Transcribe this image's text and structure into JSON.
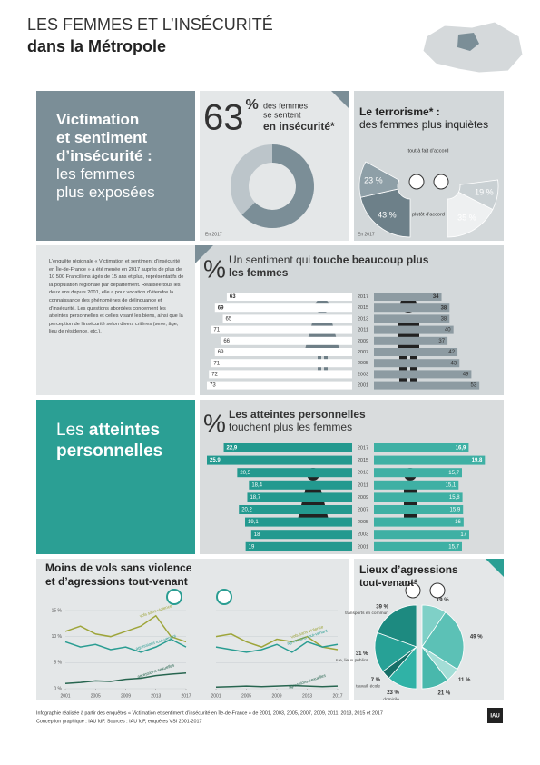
{
  "header": {
    "title": "LES FEMMES ET L’INSÉCURITÉ",
    "subtitle": "dans la Métropole"
  },
  "section1": {
    "title": [
      "Victimation",
      "et sentiment",
      "d’insécurité :"
    ],
    "subtitle": [
      "les femmes",
      "plus exposées"
    ]
  },
  "survey_text": "L’enquête régionale « Victimation et sentiment d’insécurité en Île-de-France » a été menée en 2017 auprès de plus de 10 500 Franciliens âgés de 15 ans et plus, représentatifs de la population régionale par département. Réalisée tous les deux ans depuis 2001, elle a pour vocation d’étendre la connaissance des phénomènes de délinquance et d’insécurité. Les questions abordées concernent les atteintes personnelles et celles visant les biens, ainsi que la perception de l’insécurité selon divers critères (sexe, âge, lieu de résidence, etc.).",
  "section2": {
    "prefix": "Les",
    "title": [
      "atteintes",
      "personnelles"
    ]
  },
  "chart_data": [
    {
      "type": "donut",
      "values": [
        63
      ],
      "unit": "%",
      "text": [
        "des femmes",
        "se sentent"
      ],
      "emphasis": "en insécurité*",
      "note": "En 2017",
      "colors": [
        "#7b8e97",
        "#bcc5ca"
      ]
    },
    {
      "type": "split-pie",
      "title": "Le terrorisme* :",
      "subtitle": "des femmes plus inquiètes",
      "start": "bottom",
      "categories": [
        "tout à fait d’accord",
        "plutôt d’accord"
      ],
      "series": [
        {
          "values": [
            23,
            43
          ],
          "value_labels": [
            "23 %",
            "43 %"
          ],
          "colors": [
            "#8e9fa7",
            "#6d8089"
          ]
        },
        {
          "values": [
            19,
            35
          ],
          "value_labels": [
            "19 %",
            "35 %"
          ],
          "colors": [
            "#c9d0d3",
            "#eef0f1"
          ]
        }
      ],
      "note": "En 2017"
    },
    {
      "type": "butterfly-bar",
      "symbol": "%",
      "title": "Un sentiment qui",
      "title_bold": [
        "touche beaucoup plus",
        "les femmes"
      ],
      "categories": [
        "2017",
        "2015",
        "2013",
        "2011",
        "2009",
        "2007",
        "2005",
        "2003",
        "2001"
      ],
      "series": [
        {
          "color": "#ffffff",
          "values": [
            63,
            69,
            65,
            71,
            66,
            69,
            71,
            72,
            73
          ]
        },
        {
          "color": "#8d9ba2",
          "values": [
            34,
            38,
            38,
            40,
            37,
            42,
            43,
            49,
            53
          ]
        }
      ]
    },
    {
      "type": "butterfly-bar",
      "symbol": "%",
      "title_bold": [
        "Les atteintes personnelles"
      ],
      "subtitle": "touchent plus les femmes",
      "categories": [
        "2017",
        "2015",
        "2013",
        "2011",
        "2009",
        "2007",
        "2005",
        "2003",
        "2001"
      ],
      "series": [
        {
          "color": "#23998f",
          "values": [
            22.9,
            25.9,
            20.5,
            18.4,
            18.7,
            20.2,
            19.1,
            18,
            19
          ],
          "value_labels": [
            "22,9",
            "25,9",
            "20,5",
            "18,4",
            "18,7",
            "20,2",
            "19,1",
            "18",
            "19"
          ]
        },
        {
          "color": "#3fb0a4",
          "values": [
            16.9,
            19.8,
            15.7,
            15.1,
            15.8,
            15.9,
            16,
            17,
            15.7
          ],
          "value_labels": [
            "16,9",
            "19,8",
            "15,7",
            "15,1",
            "15,8",
            "15,9",
            "16",
            "17",
            "15,7"
          ]
        }
      ]
    },
    {
      "type": "line",
      "title": [
        "Moins de vols sans violence",
        "et d’agressions tout-venant"
      ],
      "x": [
        2001,
        2003,
        2005,
        2007,
        2009,
        2011,
        2013,
        2015,
        2017
      ],
      "xlim": [
        2001,
        2017
      ],
      "xticks": [
        2001,
        2005,
        2009,
        2013,
        2017
      ],
      "ylim": [
        0,
        15
      ],
      "yticks": [
        {
          "value": 0,
          "label": "0 %"
        },
        {
          "value": 5,
          "label": "5 %"
        },
        {
          "value": 10,
          "label": "10 %"
        },
        {
          "value": 15,
          "label": "15 %"
        }
      ],
      "grid": true,
      "panels": [
        {
          "series": [
            {
              "name": "vols sans violence",
              "color": "#9ea53a",
              "values": [
                11,
                12,
                10.5,
                10,
                11,
                12,
                14,
                10,
                9
              ]
            },
            {
              "name": "agressions tout-venant",
              "color": "#2a9d92",
              "values": [
                9,
                8,
                8.5,
                7.5,
                8,
                7,
                8,
                9.5,
                8
              ]
            },
            {
              "name": "agressions sexuelles",
              "color": "#27654f",
              "values": [
                1,
                1.2,
                1.5,
                1.4,
                1.8,
                2,
                2.5,
                2.8,
                3
              ]
            }
          ]
        },
        {
          "series": [
            {
              "name": "vols sans violence",
              "color": "#9ea53a",
              "values": [
                10,
                10.5,
                9,
                8,
                9.5,
                9,
                10,
                8,
                7.5
              ]
            },
            {
              "name": "agressions tout-venant",
              "color": "#2a9d92",
              "values": [
                8,
                7.5,
                7,
                7.5,
                8.5,
                7,
                9,
                8,
                8.5
              ]
            },
            {
              "name": "agressions sexuelles",
              "color": "#27654f",
              "values": [
                0.3,
                0.4,
                0.5,
                0.4,
                0.5,
                0.6,
                0.5,
                0.4,
                0.5
              ]
            }
          ]
        }
      ]
    },
    {
      "type": "split-pie",
      "title": "Lieux d’agressions",
      "subtitle": "tout-venant*",
      "start": "top",
      "categories": [
        "transports en commun",
        "rue, lieux publics",
        "travail, école",
        "domicile"
      ],
      "series": [
        {
          "values": [
            39,
            31,
            7,
            23
          ],
          "value_labels": [
            "39 %",
            "31 %",
            "7 %",
            "23 %"
          ],
          "colors": [
            "#1d8a80",
            "#27a196",
            "#166f67",
            "#30b2a6"
          ]
        },
        {
          "values": [
            19,
            49,
            11,
            21
          ],
          "value_labels": [
            "19 %",
            "49 %",
            "11 %",
            "21 %"
          ],
          "colors": [
            "#7fd0c7",
            "#5cc1b6",
            "#a3ddd6",
            "#49b8ac"
          ]
        }
      ]
    }
  ],
  "footer": {
    "lines": [
      "Infographie réalisée à partir des enquêtes « Victimation et sentiment d’insécurité en Île-de-France » de 2001, 2003, 2005, 2007, 2009, 2011, 2013, 2015 et 2017",
      "Conception graphique : IAU îdF. Sources : IAU îdF, enquêtes VSI 2001-2017"
    ],
    "logo": "IAU"
  }
}
